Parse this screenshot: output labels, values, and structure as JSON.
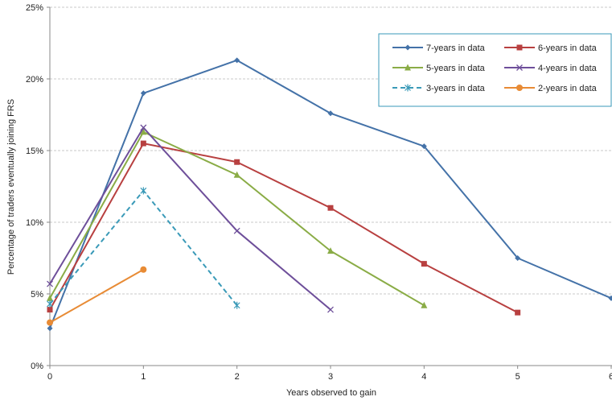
{
  "chart_data": {
    "type": "line",
    "title": "",
    "xlabel": "Years observed to gain",
    "ylabel": "Percentage of traders eventually joining FRS",
    "xlim": [
      0,
      6
    ],
    "ylim": [
      0,
      25
    ],
    "x_ticks": [
      "0",
      "1",
      "2",
      "3",
      "4",
      "5",
      "6"
    ],
    "y_ticks": [
      "0%",
      "5%",
      "10%",
      "15%",
      "20%",
      "25%"
    ],
    "grid": "horizontal dashed",
    "legend_position": "top-right",
    "series": [
      {
        "name": "7-years in data",
        "color": "#4472a8",
        "marker": "diamond",
        "dash": "solid",
        "x": [
          0,
          1,
          2,
          3,
          4,
          5,
          6
        ],
        "y": [
          2.6,
          19.0,
          21.3,
          17.6,
          15.3,
          7.5,
          4.7
        ]
      },
      {
        "name": "6-years in data",
        "color": "#b84040",
        "marker": "square",
        "dash": "solid",
        "x": [
          0,
          1,
          2,
          3,
          4,
          5
        ],
        "y": [
          3.9,
          15.5,
          14.2,
          11.0,
          7.1,
          3.7
        ]
      },
      {
        "name": "5-years in data",
        "color": "#8aac46",
        "marker": "triangle",
        "dash": "solid",
        "x": [
          0,
          1,
          2,
          3,
          4
        ],
        "y": [
          4.7,
          16.3,
          13.3,
          8.0,
          4.2
        ]
      },
      {
        "name": "4-years in data",
        "color": "#6e4f9a",
        "marker": "x",
        "dash": "solid",
        "x": [
          0,
          1,
          2,
          3
        ],
        "y": [
          5.7,
          16.6,
          9.4,
          3.9
        ]
      },
      {
        "name": "3-years in data",
        "color": "#3a9ab8",
        "marker": "asterisk",
        "dash": "dashed",
        "x": [
          0,
          1,
          2
        ],
        "y": [
          4.3,
          12.2,
          4.2
        ]
      },
      {
        "name": "2-years in data",
        "color": "#e88b35",
        "marker": "circle",
        "dash": "solid",
        "x": [
          0,
          1
        ],
        "y": [
          3.0,
          6.7
        ]
      }
    ]
  }
}
